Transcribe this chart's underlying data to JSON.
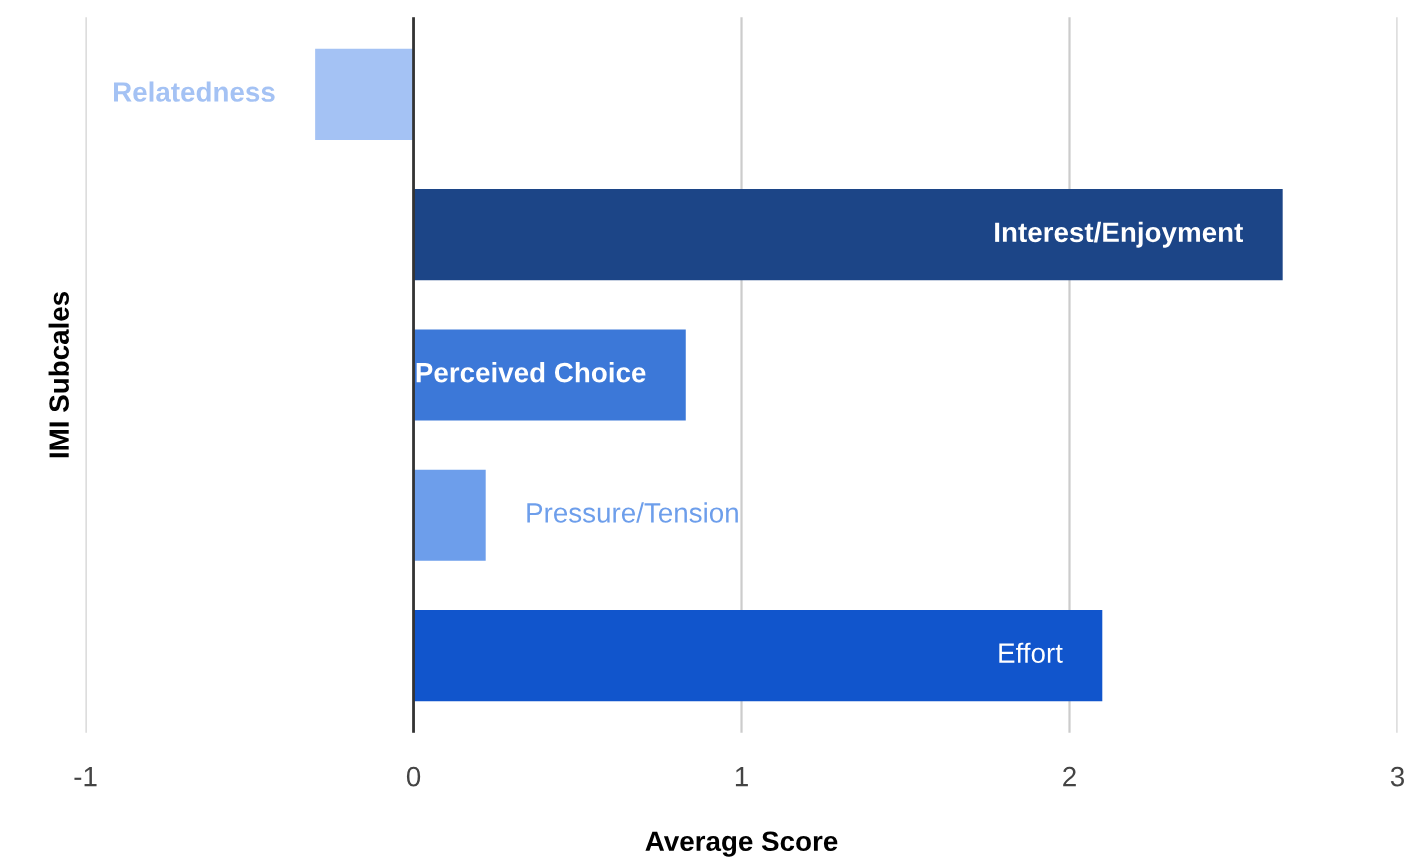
{
  "chart_data": {
    "type": "bar",
    "orientation": "horizontal",
    "xlabel": "Average Score",
    "ylabel": "IMI Subcales",
    "categories": [
      "Relatedness",
      "Interest/Enjoyment",
      "Perceived Choice",
      "Pressure/Tension",
      "Effort"
    ],
    "values": [
      -0.3,
      2.65,
      0.83,
      0.22,
      2.1
    ],
    "colors": [
      "#a4c2f4",
      "#1c4587",
      "#3c78d8",
      "#6d9eeb",
      "#1155cc"
    ],
    "xlim": [
      -1,
      3
    ],
    "xticks": [
      -1,
      0,
      1,
      2,
      3
    ],
    "grid": "x",
    "legend": false
  }
}
